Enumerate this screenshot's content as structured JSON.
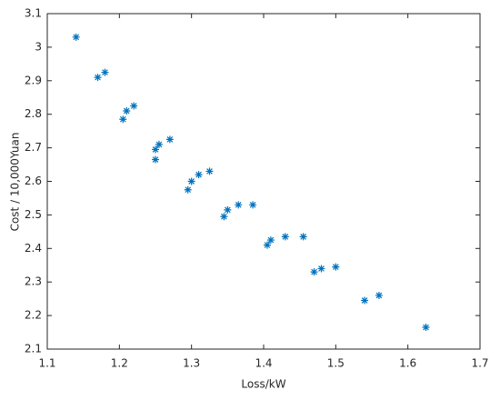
{
  "chart_data": {
    "type": "scatter",
    "x_label": "Loss/kW",
    "y_label": "Cost / 10,000Yuan",
    "marker": "asterisk",
    "color": "#0072bd",
    "x": [
      1.14,
      1.17,
      1.18,
      1.205,
      1.21,
      1.22,
      1.25,
      1.25,
      1.255,
      1.27,
      1.295,
      1.3,
      1.31,
      1.325,
      1.345,
      1.35,
      1.365,
      1.385,
      1.405,
      1.41,
      1.43,
      1.455,
      1.47,
      1.48,
      1.5,
      1.54,
      1.56,
      1.625
    ],
    "y": [
      3.03,
      2.91,
      2.925,
      2.785,
      2.81,
      2.825,
      2.695,
      2.665,
      2.71,
      2.725,
      2.575,
      2.6,
      2.62,
      2.63,
      2.495,
      2.515,
      2.53,
      2.53,
      2.41,
      2.425,
      2.435,
      2.435,
      2.33,
      2.34,
      2.345,
      2.245,
      2.26,
      2.165
    ],
    "xlim": [
      1.1,
      1.7
    ],
    "xticks": [
      1.1,
      1.2,
      1.3,
      1.4,
      1.5,
      1.6,
      1.7
    ],
    "ylim": [
      2.1,
      3.1
    ],
    "yticks": [
      2.1,
      2.2,
      2.3,
      2.4,
      2.5,
      2.6,
      2.7,
      2.8,
      2.9,
      3,
      3.1
    ],
    "grid": false
  }
}
